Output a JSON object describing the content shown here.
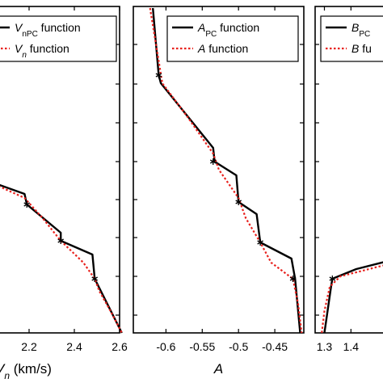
{
  "chart_data": [
    {
      "type": "line",
      "xlabel_italic": "V",
      "xlabel_sub": "n",
      "xlabel_tail": " (km/s)",
      "xlim": [
        2.0,
        2.6
      ],
      "xticks": [
        2.2,
        2.4,
        2.6
      ],
      "xtick_labels": [
        "2.2",
        "2.4",
        "2.6"
      ],
      "legend": [
        {
          "italic": "V",
          "sub": "nPC",
          "tail": " function",
          "style": "solid"
        },
        {
          "italic": "V",
          "sub": "n",
          "tail": " function",
          "style": "dotted"
        }
      ],
      "series": [
        {
          "name": "VnPC function",
          "style": "solid",
          "color": "#000000",
          "x": [
            2.0,
            2.18,
            2.19,
            2.34,
            2.34,
            2.48,
            2.49,
            2.61
          ],
          "y": [
            222,
            240,
            253,
            288,
            298,
            315,
            345,
            412
          ]
        },
        {
          "name": "Vn function",
          "style": "dotted",
          "color": "#e8201c",
          "x": [
            2.0,
            2.18,
            2.26,
            2.34,
            2.44,
            2.49,
            2.51,
            2.56,
            2.61
          ],
          "y": [
            222,
            245,
            270,
            298,
            325,
            345,
            360,
            385,
            412
          ]
        }
      ],
      "markers": {
        "x": [
          2.19,
          2.34,
          2.49
        ],
        "y": [
          253,
          298,
          345
        ]
      }
    },
    {
      "type": "line",
      "xlabel": "A",
      "xlim": [
        -0.645,
        -0.41
      ],
      "xticks": [
        -0.6,
        -0.55,
        -0.5,
        -0.45
      ],
      "xtick_labels": [
        "-0.6",
        "-0.55",
        "-0.5",
        "-0.45"
      ],
      "legend": [
        {
          "italic": "A",
          "sub": "PC",
          "tail": " function",
          "style": "solid"
        },
        {
          "italic": "A",
          "sub": "",
          "tail": " function",
          "style": "dotted"
        }
      ],
      "series": [
        {
          "name": "APC function",
          "style": "solid",
          "color": "#000000",
          "x": [
            -0.618,
            -0.61,
            -0.607,
            -0.535,
            -0.533,
            -0.503,
            -0.5,
            -0.475,
            -0.47,
            -0.427,
            -0.422,
            -0.415
          ],
          "y": [
            10,
            93,
            103,
            183,
            200,
            217,
            250,
            265,
            300,
            320,
            345,
            412
          ]
        },
        {
          "name": "A function",
          "style": "dotted",
          "color": "#e8201c",
          "x": [
            -0.622,
            -0.611,
            -0.605,
            -0.57,
            -0.535,
            -0.527,
            -0.5,
            -0.49,
            -0.47,
            -0.455,
            -0.425,
            -0.418,
            -0.413
          ],
          "y": [
            10,
            70,
            103,
            145,
            190,
            210,
            245,
            270,
            300,
            325,
            345,
            375,
            412
          ]
        }
      ],
      "markers": {
        "x": [
          -0.61,
          -0.535,
          -0.5,
          -0.47,
          -0.425
        ],
        "y": [
          93,
          200,
          250,
          300,
          345
        ]
      }
    },
    {
      "type": "line",
      "xlim": [
        1.265,
        1.6
      ],
      "xticks": [
        1.3,
        1.4
      ],
      "xtick_labels": [
        "1.3",
        "1.4"
      ],
      "legend": [
        {
          "italic": "B",
          "sub": "PC",
          "tail": "",
          "style": "solid"
        },
        {
          "italic": "B",
          "sub": "",
          "tail": " fu",
          "style": "dotted"
        }
      ],
      "series": [
        {
          "name": "BPC",
          "style": "solid",
          "color": "#000000",
          "x": [
            1.6,
            1.42,
            1.33,
            1.325,
            1.3
          ],
          "y": [
            318,
            333,
            345,
            355,
            412
          ]
        },
        {
          "name": "B",
          "style": "dotted",
          "color": "#e8201c",
          "x": [
            1.6,
            1.48,
            1.36,
            1.32,
            1.3,
            1.29
          ],
          "y": [
            322,
            332,
            342,
            355,
            385,
            412
          ]
        }
      ],
      "markers": {
        "x": [
          1.33
        ],
        "y": [
          345
        ]
      }
    }
  ]
}
